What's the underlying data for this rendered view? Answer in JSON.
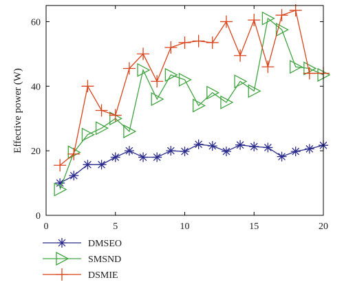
{
  "chart_data": {
    "type": "line",
    "title": "",
    "xlabel": "",
    "ylabel": "Effective power (W)",
    "xlim": [
      0,
      20
    ],
    "ylim": [
      0,
      65
    ],
    "xticks": [
      0,
      5,
      10,
      15,
      20
    ],
    "yticks": [
      0,
      20,
      40,
      60
    ],
    "grid": false,
    "legend_position": "bottom-left, below plot",
    "x": [
      1,
      2,
      3,
      4,
      5,
      6,
      7,
      8,
      9,
      10,
      11,
      12,
      13,
      14,
      15,
      16,
      17,
      18,
      19,
      20
    ],
    "series": [
      {
        "name": "DMSEO",
        "color": "#2b2b8c",
        "marker": "asterisk",
        "values": [
          10,
          12.3,
          15.7,
          15.7,
          18,
          20,
          18,
          18,
          20,
          19.8,
          22,
          21.5,
          19.8,
          21.8,
          21.3,
          21,
          18.2,
          19.8,
          20.6,
          21.7
        ]
      },
      {
        "name": "SMSND",
        "color": "#3fa33f",
        "marker": "triangle-right",
        "values": [
          8,
          19.5,
          25,
          27,
          30,
          26,
          45,
          36,
          43.5,
          42,
          34,
          38,
          35,
          41.5,
          38.5,
          61,
          57.5,
          46,
          45.5,
          43.5
        ]
      },
      {
        "name": "DSMIE",
        "color": "#d9431a",
        "marker": "plus",
        "values": [
          15.5,
          19,
          40,
          32.5,
          31,
          45.5,
          50,
          41.5,
          52,
          53.5,
          54,
          53.5,
          60,
          49.5,
          60.5,
          46,
          62,
          63.5,
          44,
          44
        ]
      }
    ]
  }
}
